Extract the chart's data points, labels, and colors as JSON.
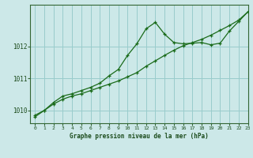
{
  "title": "Graphe pression niveau de la mer (hPa)",
  "bg_color": "#cce8e8",
  "grid_color": "#99cccc",
  "line_color": "#1a6b1a",
  "xlim": [
    -0.5,
    23
  ],
  "ylim": [
    1009.6,
    1013.3
  ],
  "yticks": [
    1010,
    1011,
    1012
  ],
  "xticks": [
    0,
    1,
    2,
    3,
    4,
    5,
    6,
    7,
    8,
    9,
    10,
    11,
    12,
    13,
    14,
    15,
    16,
    17,
    18,
    19,
    20,
    21,
    22,
    23
  ],
  "series1_x": [
    0,
    1,
    2,
    3,
    4,
    5,
    6,
    7,
    8,
    9,
    10,
    11,
    12,
    13,
    14,
    15,
    16,
    17,
    18,
    19,
    20,
    21,
    22,
    23
  ],
  "series1_y": [
    1009.8,
    1010.0,
    1010.2,
    1010.35,
    1010.45,
    1010.52,
    1010.62,
    1010.72,
    1010.82,
    1010.92,
    1011.05,
    1011.18,
    1011.38,
    1011.55,
    1011.72,
    1011.88,
    1012.02,
    1012.12,
    1012.22,
    1012.35,
    1012.5,
    1012.65,
    1012.82,
    1013.08
  ],
  "series2_x": [
    0,
    1,
    2,
    3,
    4,
    5,
    6,
    7,
    8,
    9,
    10,
    11,
    12,
    13,
    14,
    15,
    16,
    17,
    18,
    19,
    20,
    21,
    22,
    23
  ],
  "series2_y": [
    1009.85,
    1010.0,
    1010.25,
    1010.45,
    1010.52,
    1010.62,
    1010.72,
    1010.85,
    1011.08,
    1011.28,
    1011.72,
    1012.08,
    1012.55,
    1012.75,
    1012.38,
    1012.12,
    1012.08,
    1012.1,
    1012.12,
    1012.05,
    1012.1,
    1012.48,
    1012.78,
    1013.08
  ]
}
